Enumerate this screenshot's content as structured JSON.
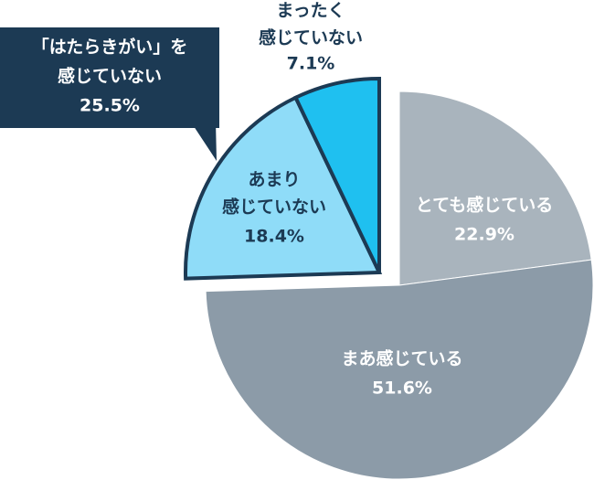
{
  "chart_data": {
    "type": "pie",
    "categories": [
      [
        "とても感じている"
      ],
      [
        "まあ感じている"
      ],
      [
        "あまり",
        "感じていない"
      ],
      [
        "まったく",
        "感じていない"
      ]
    ],
    "values": [
      22.9,
      51.6,
      18.4,
      7.1
    ],
    "value_labels": [
      "22.9%",
      "51.6%",
      "18.4%",
      "7.1%"
    ],
    "colors": [
      "#a9b4bd",
      "#8c9ba8",
      "#8fdcf8",
      "#1fc0f0"
    ],
    "explode": [
      false,
      false,
      true,
      true
    ],
    "annotation": [
      "「はたらきがい」を",
      "感じていない",
      "25.5%"
    ]
  }
}
